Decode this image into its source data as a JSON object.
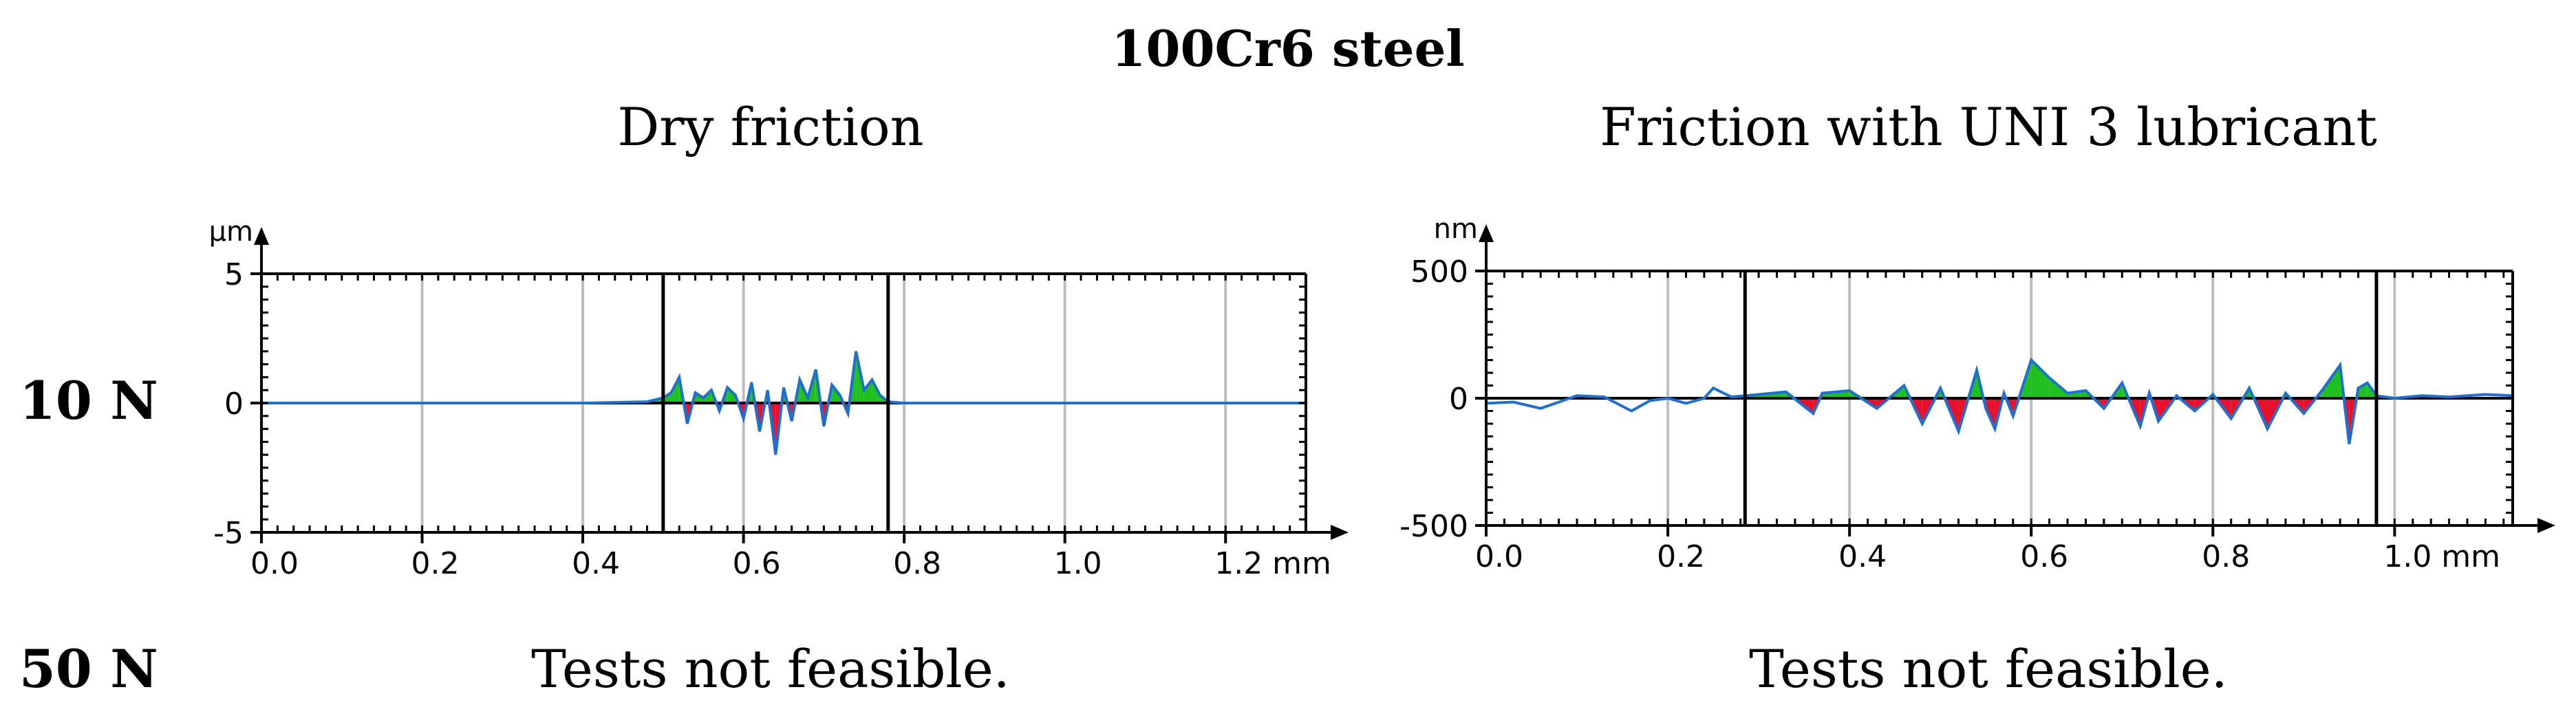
{
  "header": {
    "title": "100Cr6 steel"
  },
  "columns": [
    {
      "label": "Dry friction"
    },
    {
      "label": "Friction with UNI 3 lubricant"
    }
  ],
  "rows": [
    {
      "label": "10 N"
    },
    {
      "label": "50 N",
      "cells": [
        "Tests not feasible.",
        "Tests not feasible."
      ]
    }
  ],
  "colors": {
    "profile_line": "#1f6fd1",
    "above_fill": "#20c020",
    "below_fill": "#e8102a",
    "grid": "#bdbdbd",
    "axis": "#000000"
  },
  "chart_data": [
    {
      "type": "line",
      "title": "Dry friction",
      "ylabel": "µm",
      "xlabel": "mm",
      "xlim": [
        0.0,
        1.3
      ],
      "ylim": [
        -5,
        5
      ],
      "xticks": [
        "0.0",
        "0.2",
        "0.4",
        "0.6",
        "0.8",
        "1.0",
        "1.2 mm"
      ],
      "yticks": [
        "5",
        "0",
        "-5"
      ],
      "xtick_values": [
        0.0,
        0.2,
        0.4,
        0.6,
        0.8,
        1.0,
        1.2
      ],
      "ytick_values": [
        5,
        0,
        -5
      ],
      "wear_track_bounds": [
        0.5,
        0.78
      ],
      "grid_x": [
        0.2,
        0.4,
        0.6,
        0.8,
        1.0,
        1.2
      ],
      "x": [
        0.0,
        0.1,
        0.2,
        0.3,
        0.4,
        0.48,
        0.5,
        0.51,
        0.52,
        0.53,
        0.54,
        0.55,
        0.56,
        0.57,
        0.58,
        0.59,
        0.6,
        0.61,
        0.62,
        0.63,
        0.64,
        0.65,
        0.66,
        0.67,
        0.68,
        0.69,
        0.7,
        0.71,
        0.72,
        0.73,
        0.74,
        0.75,
        0.76,
        0.77,
        0.78,
        0.8,
        0.9,
        1.0,
        1.1,
        1.2,
        1.3
      ],
      "y": [
        0.0,
        0.0,
        0.0,
        0.0,
        0.0,
        0.05,
        0.2,
        0.4,
        1.0,
        -0.8,
        0.4,
        0.2,
        0.5,
        -0.3,
        0.6,
        0.3,
        -0.6,
        0.8,
        -1.1,
        0.5,
        -2.0,
        0.6,
        -0.7,
        0.9,
        0.2,
        1.3,
        -0.9,
        0.7,
        0.3,
        -0.4,
        2.0,
        0.5,
        0.9,
        0.3,
        0.05,
        0.0,
        0.0,
        0.0,
        0.0,
        0.0,
        0.0
      ]
    },
    {
      "type": "line",
      "title": "Friction with UNI 3 lubricant",
      "ylabel": "nm",
      "xlabel": "mm",
      "xlim": [
        0.0,
        1.13
      ],
      "ylim": [
        -500,
        500
      ],
      "xticks": [
        "0.0",
        "0.2",
        "0.4",
        "0.6",
        "0.8",
        "1.0 mm"
      ],
      "yticks": [
        "500",
        "0",
        "-500"
      ],
      "xtick_values": [
        0.0,
        0.2,
        0.4,
        0.6,
        0.8,
        1.0
      ],
      "ytick_values": [
        500,
        0,
        -500
      ],
      "wear_track_bounds": [
        0.285,
        0.98
      ],
      "grid_x": [
        0.2,
        0.4,
        0.6,
        0.8,
        1.0
      ],
      "x": [
        0.0,
        0.03,
        0.06,
        0.1,
        0.13,
        0.16,
        0.18,
        0.2,
        0.22,
        0.24,
        0.25,
        0.27,
        0.285,
        0.3,
        0.33,
        0.36,
        0.37,
        0.4,
        0.43,
        0.46,
        0.48,
        0.5,
        0.52,
        0.54,
        0.55,
        0.56,
        0.57,
        0.58,
        0.6,
        0.62,
        0.64,
        0.66,
        0.68,
        0.7,
        0.72,
        0.73,
        0.74,
        0.76,
        0.78,
        0.8,
        0.82,
        0.84,
        0.86,
        0.88,
        0.9,
        0.92,
        0.94,
        0.95,
        0.96,
        0.97,
        0.98,
        1.0,
        1.03,
        1.06,
        1.1,
        1.13
      ],
      "y": [
        -20,
        -15,
        -40,
        10,
        5,
        -50,
        -10,
        0,
        -20,
        0,
        40,
        5,
        10,
        15,
        25,
        -60,
        20,
        30,
        -40,
        50,
        -100,
        40,
        -130,
        110,
        -40,
        -120,
        20,
        -70,
        150,
        80,
        20,
        30,
        -40,
        60,
        -110,
        20,
        -90,
        10,
        -50,
        15,
        -80,
        40,
        -120,
        20,
        -60,
        30,
        130,
        -180,
        40,
        60,
        10,
        0,
        10,
        5,
        15,
        10
      ]
    }
  ]
}
